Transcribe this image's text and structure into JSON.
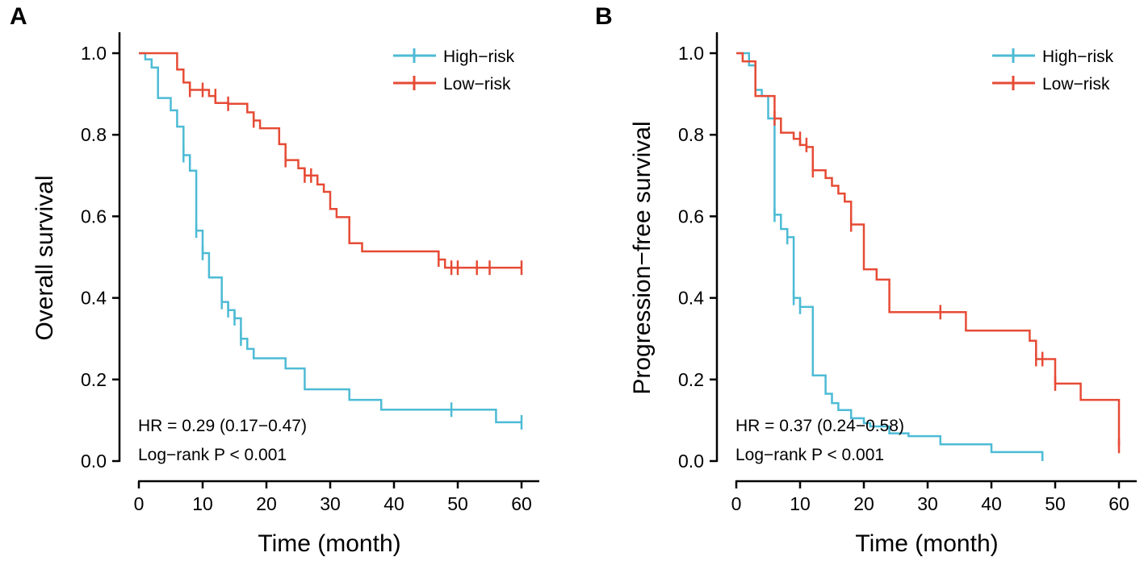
{
  "chart_data": [
    {
      "type": "line",
      "panel_label": "A",
      "xlabel": "Time (month)",
      "ylabel": "Overall survival",
      "xlim": [
        0,
        60
      ],
      "ylim": [
        0,
        1
      ],
      "xticks": [
        "0",
        "10",
        "20",
        "30",
        "40",
        "50",
        "60"
      ],
      "yticks": [
        "0.0",
        "0.2",
        "0.4",
        "0.6",
        "0.8",
        "1.0"
      ],
      "legend_position": "top-right",
      "annotations": [
        "HR = 0.29 (0.17−0.47)",
        "Log−rank P < 0.001"
      ],
      "series": [
        {
          "name": "High−risk",
          "color": "#4DBBD5",
          "steps": [
            [
              0,
              1.0
            ],
            [
              1,
              0.985
            ],
            [
              2,
              0.965
            ],
            [
              3,
              0.89
            ],
            [
              5,
              0.86
            ],
            [
              6,
              0.82
            ],
            [
              7,
              0.75
            ],
            [
              8,
              0.712
            ],
            [
              9,
              0.565
            ],
            [
              10,
              0.51
            ],
            [
              11,
              0.45
            ],
            [
              13,
              0.39
            ],
            [
              14,
              0.37
            ],
            [
              15,
              0.35
            ],
            [
              16,
              0.3
            ],
            [
              17,
              0.275
            ],
            [
              18,
              0.252
            ],
            [
              23,
              0.227
            ],
            [
              26,
              0.176
            ],
            [
              33,
              0.15
            ],
            [
              38,
              0.126
            ],
            [
              48,
              0.126
            ],
            [
              56,
              0.095
            ],
            [
              60,
              0.095
            ]
          ],
          "censored": [
            [
              7,
              0.75
            ],
            [
              9,
              0.565
            ],
            [
              10,
              0.51
            ],
            [
              13,
              0.39
            ],
            [
              14,
              0.37
            ],
            [
              15,
              0.35
            ],
            [
              16,
              0.3
            ],
            [
              49,
              0.126
            ],
            [
              60,
              0.095
            ]
          ]
        },
        {
          "name": "Low−risk",
          "color": "#E64B35",
          "steps": [
            [
              0,
              1.0
            ],
            [
              6,
              0.96
            ],
            [
              7,
              0.928
            ],
            [
              8,
              0.91
            ],
            [
              11,
              0.895
            ],
            [
              12,
              0.878
            ],
            [
              14,
              0.876
            ],
            [
              17,
              0.855
            ],
            [
              18,
              0.835
            ],
            [
              19,
              0.816
            ],
            [
              22,
              0.777
            ],
            [
              23,
              0.738
            ],
            [
              25,
              0.718
            ],
            [
              26,
              0.7
            ],
            [
              28,
              0.678
            ],
            [
              29,
              0.66
            ],
            [
              30,
              0.618
            ],
            [
              31,
              0.598
            ],
            [
              33,
              0.534
            ],
            [
              35,
              0.514
            ],
            [
              47,
              0.494
            ],
            [
              48,
              0.474
            ],
            [
              60,
              0.474
            ]
          ],
          "censored": [
            [
              8,
              0.91
            ],
            [
              10,
              0.91
            ],
            [
              12,
              0.895
            ],
            [
              14,
              0.876
            ],
            [
              18,
              0.835
            ],
            [
              23,
              0.738
            ],
            [
              26,
              0.7
            ],
            [
              27,
              0.7
            ],
            [
              47,
              0.494
            ],
            [
              49,
              0.474
            ],
            [
              50,
              0.474
            ],
            [
              53,
              0.474
            ],
            [
              55,
              0.474
            ],
            [
              60,
              0.474
            ]
          ]
        }
      ]
    },
    {
      "type": "line",
      "panel_label": "B",
      "xlabel": "Time (month)",
      "ylabel": "Progression−free survival",
      "xlim": [
        0,
        60
      ],
      "ylim": [
        0,
        1
      ],
      "xticks": [
        "0",
        "10",
        "20",
        "30",
        "40",
        "50",
        "60"
      ],
      "yticks": [
        "0.0",
        "0.2",
        "0.4",
        "0.6",
        "0.8",
        "1.0"
      ],
      "legend_position": "top-right",
      "annotations": [
        "HR = 0.37 (0.24−0.58)",
        "Log−rank P < 0.001"
      ],
      "series": [
        {
          "name": "High−risk",
          "color": "#4DBBD5",
          "steps": [
            [
              0,
              1.0
            ],
            [
              2,
              0.97
            ],
            [
              3,
              0.91
            ],
            [
              4,
              0.895
            ],
            [
              5,
              0.84
            ],
            [
              6,
              0.604
            ],
            [
              7,
              0.569
            ],
            [
              8,
              0.549
            ],
            [
              9,
              0.4
            ],
            [
              10,
              0.378
            ],
            [
              12,
              0.21
            ],
            [
              14,
              0.165
            ],
            [
              15,
              0.142
            ],
            [
              16,
              0.125
            ],
            [
              18,
              0.105
            ],
            [
              20,
              0.093
            ],
            [
              21,
              0.085
            ],
            [
              24,
              0.068
            ],
            [
              27,
              0.061
            ],
            [
              32,
              0.041
            ],
            [
              40,
              0.022
            ],
            [
              48,
              0.0
            ]
          ],
          "censored": [
            [
              6,
              0.604
            ],
            [
              8,
              0.549
            ],
            [
              9,
              0.4
            ],
            [
              10,
              0.378
            ]
          ]
        },
        {
          "name": "Low−risk",
          "color": "#E64B35",
          "steps": [
            [
              0,
              1.0
            ],
            [
              1,
              0.98
            ],
            [
              3,
              0.895
            ],
            [
              6,
              0.84
            ],
            [
              7,
              0.805
            ],
            [
              9,
              0.79
            ],
            [
              10,
              0.775
            ],
            [
              11,
              0.77
            ],
            [
              12,
              0.713
            ],
            [
              14,
              0.694
            ],
            [
              15,
              0.675
            ],
            [
              16,
              0.656
            ],
            [
              17,
              0.636
            ],
            [
              18,
              0.58
            ],
            [
              20,
              0.47
            ],
            [
              22,
              0.445
            ],
            [
              24,
              0.365
            ],
            [
              36,
              0.32
            ],
            [
              46,
              0.295
            ],
            [
              47,
              0.25
            ],
            [
              49,
              0.25
            ],
            [
              50,
              0.19
            ],
            [
              54,
              0.15
            ],
            [
              60,
              0.037
            ]
          ],
          "censored": [
            [
              6,
              0.84
            ],
            [
              10,
              0.79
            ],
            [
              11,
              0.775
            ],
            [
              12,
              0.713
            ],
            [
              18,
              0.58
            ],
            [
              32,
              0.365
            ],
            [
              47,
              0.25
            ],
            [
              48,
              0.25
            ],
            [
              50,
              0.19
            ],
            [
              60,
              0.037
            ]
          ]
        }
      ]
    }
  ]
}
